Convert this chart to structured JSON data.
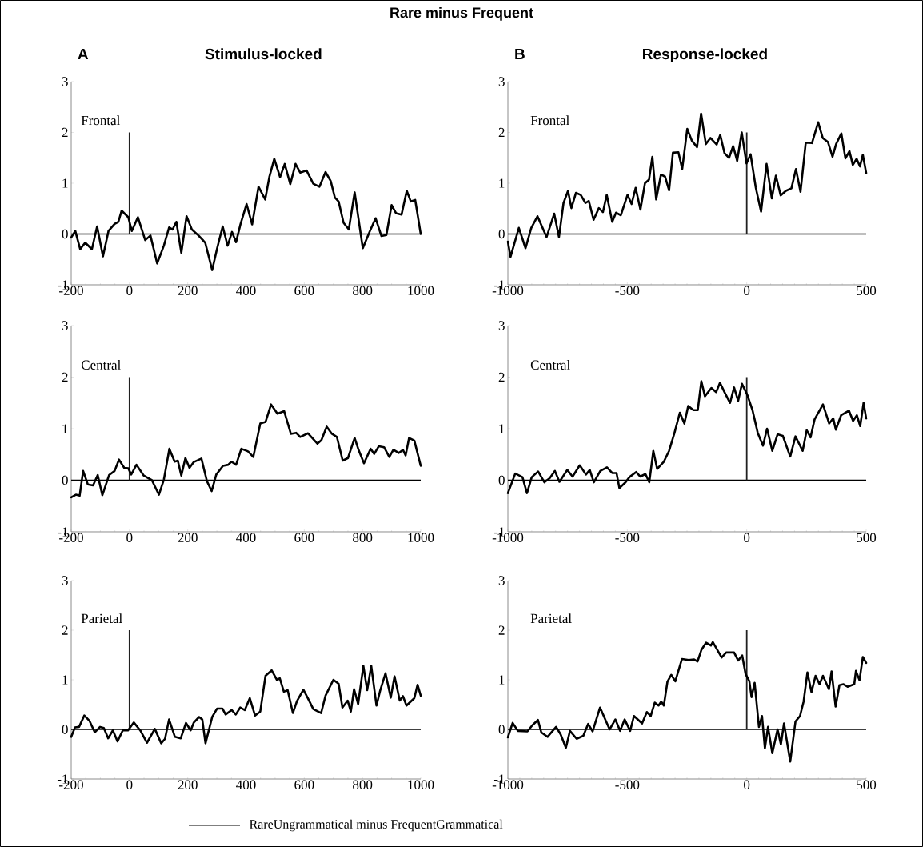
{
  "chart_data": [
    {
      "type": "line",
      "title": "Stimulus-locked",
      "subtitle": "Frontal",
      "annotations": [
        "Rare minus Frequent",
        "A"
      ],
      "x": [
        -200,
        -186,
        -169,
        -152,
        -129,
        -111,
        -91,
        -72,
        -51,
        -38,
        -27,
        -4,
        8,
        29,
        54,
        72,
        95,
        118,
        136,
        148,
        161,
        178,
        196,
        214,
        237,
        260,
        284,
        301,
        320,
        337,
        352,
        366,
        381,
        402,
        421,
        443,
        466,
        480,
        497,
        517,
        533,
        552,
        570,
        586,
        608,
        631,
        652,
        673,
        691,
        705,
        718,
        735,
        753,
        773,
        801,
        824,
        845,
        865,
        882,
        900,
        915,
        934,
        952,
        966,
        981,
        1000
      ],
      "series": [
        {
          "color": "#000000",
          "values": [
            -0.07,
            0.06,
            -0.3,
            -0.17,
            -0.3,
            0.15,
            -0.44,
            0.06,
            0.2,
            0.24,
            0.46,
            0.33,
            0.06,
            0.33,
            -0.12,
            -0.03,
            -0.58,
            -0.23,
            0.13,
            0.09,
            0.24,
            -0.37,
            0.35,
            0.09,
            -0.03,
            -0.17,
            -0.71,
            -0.28,
            0.15,
            -0.23,
            0.04,
            -0.16,
            0.19,
            0.59,
            0.19,
            0.93,
            0.68,
            1.12,
            1.48,
            1.12,
            1.38,
            0.98,
            1.38,
            1.21,
            1.25,
            0.99,
            0.93,
            1.22,
            1.04,
            0.72,
            0.64,
            0.22,
            0.09,
            0.82,
            -0.28,
            0.04,
            0.31,
            -0.04,
            -0.02,
            0.57,
            0.41,
            0.38,
            0.85,
            0.64,
            0.67,
            0.0
          ]
        }
      ],
      "xlim": [
        -200,
        1000
      ],
      "ylim": [
        -1,
        3
      ],
      "xticks": [
        -200,
        0,
        200,
        400,
        600,
        800,
        1000
      ],
      "yticks": [
        -1,
        0,
        1,
        2,
        3
      ],
      "ref_lines": [
        {
          "axis": "y",
          "value": 0,
          "color": "#000000"
        },
        {
          "axis": "x",
          "value": 0,
          "color": "#202020"
        }
      ]
    },
    {
      "type": "line",
      "title": "Response-locked",
      "subtitle": "Frontal",
      "annotations": [
        "B"
      ],
      "x": [
        -1000,
        -989,
        -954,
        -926,
        -902,
        -876,
        -838,
        -806,
        -786,
        -767,
        -748,
        -734,
        -715,
        -695,
        -675,
        -661,
        -641,
        -619,
        -602,
        -586,
        -563,
        -547,
        -527,
        -499,
        -482,
        -465,
        -445,
        -426,
        -409,
        -395,
        -379,
        -359,
        -342,
        -325,
        -309,
        -286,
        -270,
        -249,
        -230,
        -208,
        -191,
        -171,
        -152,
        -126,
        -111,
        -93,
        -74,
        -57,
        -40,
        -21,
        -1,
        16,
        38,
        60,
        83,
        105,
        122,
        142,
        164,
        187,
        206,
        225,
        247,
        273,
        299,
        318,
        340,
        359,
        374,
        396,
        413,
        430,
        444,
        460,
        474,
        486,
        500
      ],
      "series": [
        {
          "color": "#000000",
          "values": [
            -0.15,
            -0.45,
            0.12,
            -0.28,
            0.12,
            0.35,
            -0.06,
            0.4,
            -0.06,
            0.61,
            0.85,
            0.51,
            0.81,
            0.77,
            0.61,
            0.65,
            0.28,
            0.51,
            0.43,
            0.77,
            0.24,
            0.42,
            0.37,
            0.77,
            0.59,
            0.91,
            0.48,
            1.0,
            1.07,
            1.52,
            0.68,
            1.17,
            1.13,
            0.86,
            1.6,
            1.61,
            1.28,
            2.07,
            1.84,
            1.71,
            2.37,
            1.77,
            1.89,
            1.76,
            1.95,
            1.59,
            1.5,
            1.73,
            1.44,
            2.0,
            1.39,
            1.57,
            0.91,
            0.44,
            1.38,
            0.7,
            1.15,
            0.76,
            0.85,
            0.9,
            1.28,
            0.83,
            1.8,
            1.79,
            2.2,
            1.89,
            1.81,
            1.52,
            1.77,
            1.98,
            1.49,
            1.63,
            1.36,
            1.48,
            1.33,
            1.56,
            1.2
          ]
        }
      ],
      "xlim": [
        -1000,
        500
      ],
      "ylim": [
        -1,
        3
      ],
      "xticks": [
        -1000,
        -500,
        0,
        500
      ],
      "yticks": [
        -1,
        0,
        1,
        2,
        3
      ],
      "ref_lines": [
        {
          "axis": "y",
          "value": 0,
          "color": "#000000"
        },
        {
          "axis": "x",
          "value": 0,
          "color": "#202020"
        }
      ]
    },
    {
      "type": "line",
      "subtitle": "Central",
      "x": [
        -200,
        -184,
        -171,
        -159,
        -143,
        -125,
        -109,
        -93,
        -70,
        -51,
        -36,
        -18,
        -4,
        6,
        24,
        49,
        77,
        101,
        118,
        137,
        155,
        166,
        178,
        192,
        206,
        220,
        247,
        266,
        282,
        298,
        321,
        339,
        350,
        366,
        384,
        407,
        425,
        449,
        467,
        486,
        508,
        531,
        554,
        572,
        586,
        613,
        645,
        659,
        677,
        695,
        712,
        732,
        750,
        773,
        787,
        805,
        828,
        840,
        856,
        874,
        892,
        906,
        925,
        939,
        948,
        960,
        978,
        1000
      ],
      "series": [
        {
          "color": "#000000",
          "values": [
            -0.33,
            -0.28,
            -0.3,
            0.18,
            -0.08,
            -0.1,
            0.1,
            -0.29,
            0.1,
            0.18,
            0.4,
            0.24,
            0.23,
            0.11,
            0.3,
            0.09,
            0.0,
            -0.28,
            0.01,
            0.61,
            0.36,
            0.38,
            0.09,
            0.43,
            0.24,
            0.35,
            0.42,
            -0.02,
            -0.21,
            0.11,
            0.28,
            0.3,
            0.36,
            0.3,
            0.61,
            0.56,
            0.45,
            1.1,
            1.13,
            1.47,
            1.29,
            1.34,
            0.9,
            0.92,
            0.84,
            0.91,
            0.71,
            0.78,
            1.04,
            0.9,
            0.84,
            0.38,
            0.43,
            0.82,
            0.58,
            0.33,
            0.61,
            0.51,
            0.66,
            0.64,
            0.45,
            0.59,
            0.53,
            0.59,
            0.48,
            0.82,
            0.77,
            0.28
          ]
        }
      ],
      "xlim": [
        -200,
        1000
      ],
      "ylim": [
        -1,
        3
      ],
      "xticks": [
        -200,
        0,
        200,
        400,
        600,
        800,
        1000
      ],
      "yticks": [
        -1,
        0,
        1,
        2,
        3
      ],
      "ref_lines": [
        {
          "axis": "y",
          "value": 0,
          "color": "#000000"
        },
        {
          "axis": "x",
          "value": 0,
          "color": "#202020"
        }
      ]
    },
    {
      "type": "line",
      "subtitle": "Central",
      "x": [
        -1000,
        -969,
        -939,
        -920,
        -900,
        -873,
        -847,
        -825,
        -803,
        -784,
        -751,
        -729,
        -699,
        -673,
        -657,
        -640,
        -613,
        -585,
        -563,
        -545,
        -533,
        -507,
        -491,
        -463,
        -446,
        -424,
        -408,
        -391,
        -375,
        -347,
        -325,
        -303,
        -280,
        -261,
        -245,
        -223,
        -205,
        -190,
        -175,
        -148,
        -128,
        -112,
        -92,
        -70,
        -53,
        -36,
        -20,
        2,
        24,
        46,
        68,
        85,
        107,
        129,
        151,
        182,
        204,
        234,
        251,
        267,
        284,
        319,
        345,
        362,
        373,
        395,
        428,
        445,
        461,
        475,
        489,
        500
      ],
      "series": [
        {
          "color": "#000000",
          "values": [
            -0.25,
            0.13,
            0.06,
            -0.25,
            0.06,
            0.17,
            -0.04,
            0.04,
            0.18,
            -0.03,
            0.2,
            0.07,
            0.29,
            0.11,
            0.2,
            -0.04,
            0.18,
            0.25,
            0.14,
            0.14,
            -0.15,
            -0.04,
            0.06,
            0.16,
            0.07,
            0.12,
            -0.04,
            0.57,
            0.22,
            0.36,
            0.57,
            0.91,
            1.31,
            1.1,
            1.44,
            1.36,
            1.36,
            1.92,
            1.63,
            1.79,
            1.71,
            1.89,
            1.7,
            1.5,
            1.8,
            1.54,
            1.87,
            1.66,
            1.36,
            0.92,
            0.67,
            1.0,
            0.57,
            0.89,
            0.86,
            0.46,
            0.85,
            0.57,
            0.97,
            0.83,
            1.18,
            1.47,
            1.1,
            1.2,
            0.98,
            1.26,
            1.35,
            1.15,
            1.26,
            1.05,
            1.5,
            1.2
          ]
        }
      ],
      "xlim": [
        -1000,
        500
      ],
      "ylim": [
        -1,
        3
      ],
      "xticks": [
        -1000,
        -500,
        0,
        500
      ],
      "yticks": [
        -1,
        0,
        1,
        2,
        3
      ],
      "ref_lines": [
        {
          "axis": "y",
          "value": 0,
          "color": "#000000"
        },
        {
          "axis": "x",
          "value": 0,
          "color": "#202020"
        }
      ]
    },
    {
      "type": "line",
      "subtitle": "Parietal",
      "legend": "bottom",
      "x": [
        -200,
        -187,
        -173,
        -155,
        -137,
        -119,
        -101,
        -88,
        -73,
        -57,
        -41,
        -23,
        -5,
        15,
        37,
        60,
        87,
        109,
        122,
        136,
        156,
        176,
        194,
        210,
        221,
        239,
        250,
        261,
        284,
        301,
        319,
        330,
        351,
        365,
        380,
        396,
        413,
        431,
        449,
        467,
        488,
        506,
        516,
        530,
        543,
        561,
        575,
        597,
        615,
        631,
        658,
        673,
        700,
        718,
        731,
        749,
        760,
        771,
        785,
        803,
        816,
        830,
        848,
        861,
        879,
        897,
        910,
        928,
        939,
        951,
        978,
        989,
        1000
      ],
      "series": [
        {
          "name": "RareUngrammatical minus FrequentGrammatical",
          "color": "#000000",
          "values": [
            -0.15,
            0.04,
            0.05,
            0.28,
            0.17,
            -0.06,
            0.05,
            0.03,
            -0.18,
            -0.02,
            -0.24,
            -0.02,
            -0.02,
            0.14,
            -0.02,
            -0.27,
            0.01,
            -0.28,
            -0.19,
            0.2,
            -0.15,
            -0.18,
            0.13,
            -0.02,
            0.14,
            0.25,
            0.2,
            -0.28,
            0.25,
            0.42,
            0.42,
            0.3,
            0.39,
            0.3,
            0.44,
            0.39,
            0.63,
            0.28,
            0.36,
            1.08,
            1.19,
            1.0,
            1.03,
            0.76,
            0.79,
            0.33,
            0.57,
            0.8,
            0.6,
            0.41,
            0.33,
            0.68,
            1.0,
            0.92,
            0.44,
            0.58,
            0.36,
            0.81,
            0.51,
            1.28,
            0.79,
            1.28,
            0.48,
            0.79,
            1.13,
            0.64,
            1.07,
            0.58,
            0.67,
            0.48,
            0.63,
            0.9,
            0.68
          ]
        }
      ],
      "xlim": [
        -200,
        1000
      ],
      "ylim": [
        -1,
        3
      ],
      "xticks": [
        -200,
        0,
        200,
        400,
        600,
        800,
        1000
      ],
      "yticks": [
        -1,
        0,
        1,
        2,
        3
      ],
      "ref_lines": [
        {
          "axis": "y",
          "value": 0,
          "color": "#000000"
        },
        {
          "axis": "x",
          "value": 0,
          "color": "#202020"
        }
      ]
    },
    {
      "type": "line",
      "subtitle": "Parietal",
      "x": [
        -1000,
        -980,
        -958,
        -918,
        -898,
        -874,
        -860,
        -834,
        -798,
        -779,
        -757,
        -740,
        -712,
        -684,
        -664,
        -645,
        -614,
        -574,
        -550,
        -530,
        -511,
        -488,
        -472,
        -438,
        -418,
        -402,
        -385,
        -369,
        -358,
        -347,
        -332,
        -316,
        -299,
        -271,
        -243,
        -220,
        -206,
        -190,
        -170,
        -150,
        -142,
        -105,
        -86,
        -53,
        -36,
        -19,
        -5,
        11,
        20,
        33,
        51,
        64,
        76,
        89,
        107,
        129,
        143,
        156,
        182,
        204,
        223,
        238,
        254,
        271,
        288,
        305,
        319,
        344,
        355,
        372,
        388,
        405,
        422,
        450,
        457,
        472,
        486,
        500
      ],
      "series": [
        {
          "color": "#000000",
          "values": [
            -0.16,
            0.13,
            -0.03,
            -0.04,
            0.08,
            0.19,
            -0.06,
            -0.15,
            0.05,
            -0.1,
            -0.37,
            -0.03,
            -0.19,
            -0.13,
            0.11,
            -0.04,
            0.44,
            0.0,
            0.2,
            -0.03,
            0.2,
            -0.03,
            0.27,
            0.12,
            0.35,
            0.27,
            0.54,
            0.48,
            0.56,
            0.48,
            0.96,
            1.1,
            0.97,
            1.42,
            1.4,
            1.41,
            1.37,
            1.6,
            1.75,
            1.69,
            1.76,
            1.45,
            1.55,
            1.55,
            1.39,
            1.49,
            1.12,
            0.97,
            0.65,
            0.94,
            0.05,
            0.27,
            -0.38,
            0.05,
            -0.48,
            0.0,
            -0.3,
            0.12,
            -0.65,
            0.16,
            0.27,
            0.56,
            1.15,
            0.75,
            1.08,
            0.91,
            1.08,
            0.81,
            1.17,
            0.46,
            0.89,
            0.91,
            0.86,
            0.91,
            1.18,
            0.99,
            1.46,
            1.34
          ]
        }
      ],
      "xlim": [
        -1000,
        500
      ],
      "ylim": [
        -1,
        3
      ],
      "xticks": [
        -1000,
        -500,
        0,
        500
      ],
      "yticks": [
        -1,
        0,
        1,
        2,
        3
      ],
      "ref_lines": [
        {
          "axis": "y",
          "value": 0,
          "color": "#000000"
        },
        {
          "axis": "x",
          "value": 0,
          "color": "#202020"
        }
      ]
    }
  ]
}
